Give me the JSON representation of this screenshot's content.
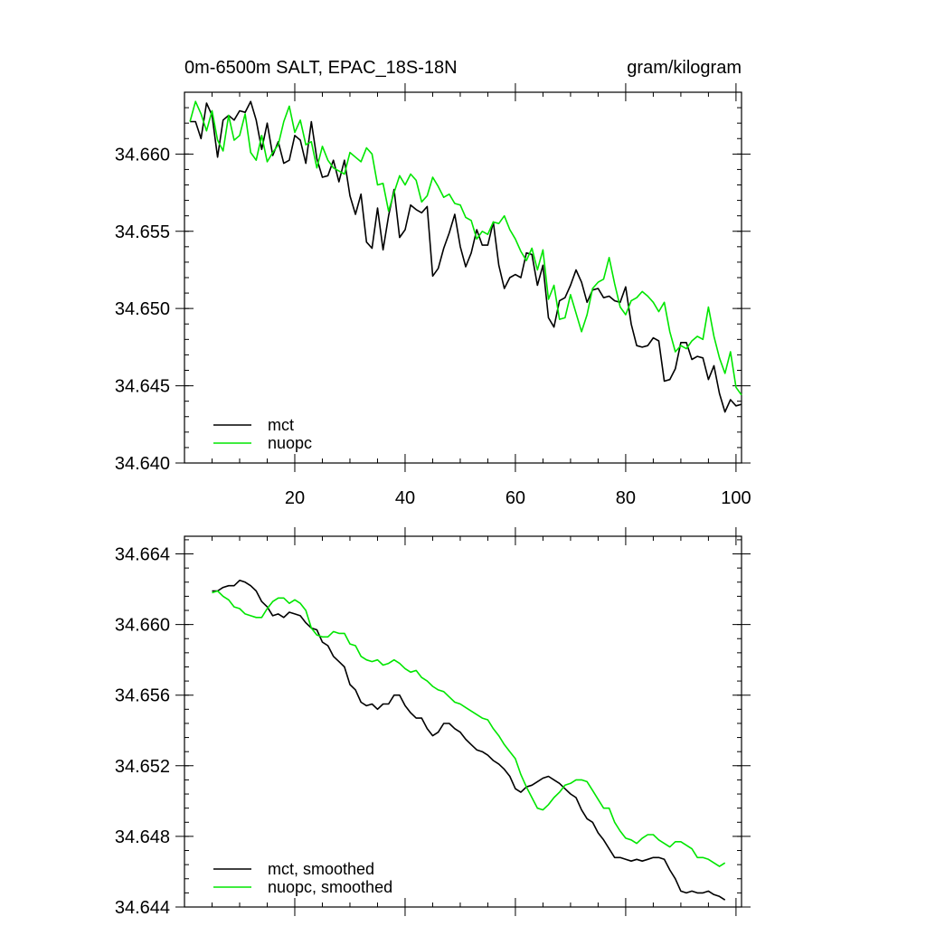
{
  "chart_data": [
    {
      "type": "line",
      "title": "0m-6500m SALT, EPAC_18S-18N",
      "units": "gram/kilogram",
      "xlabel": "",
      "ylabel": "",
      "xlim": [
        0,
        101
      ],
      "ylim": [
        34.64,
        34.664
      ],
      "x_ticks": [
        20,
        40,
        60,
        80,
        100
      ],
      "x_tick_labels": [
        "20",
        "40",
        "60",
        "80",
        "100"
      ],
      "y_ticks": [
        34.64,
        34.645,
        34.65,
        34.655,
        34.66
      ],
      "y_tick_labels": [
        "34.640",
        "34.645",
        "34.650",
        "34.655",
        "34.660"
      ],
      "grid": false,
      "legend_position": "bottom-left",
      "x": [
        1,
        2,
        3,
        4,
        5,
        6,
        7,
        8,
        9,
        10,
        11,
        12,
        13,
        14,
        15,
        16,
        17,
        18,
        19,
        20,
        21,
        22,
        23,
        24,
        25,
        26,
        27,
        28,
        29,
        30,
        31,
        32,
        33,
        34,
        35,
        36,
        37,
        38,
        39,
        40,
        41,
        42,
        43,
        44,
        45,
        46,
        47,
        48,
        49,
        50,
        51,
        52,
        53,
        54,
        55,
        56,
        57,
        58,
        59,
        60,
        61,
        62,
        63,
        64,
        65,
        66,
        67,
        68,
        69,
        70,
        71,
        72,
        73,
        74,
        75,
        76,
        77,
        78,
        79,
        80,
        81,
        82,
        83,
        84,
        85,
        86,
        87,
        88,
        89,
        90,
        91,
        92,
        93,
        94,
        95,
        96,
        97,
        98,
        99,
        100,
        101
      ],
      "series": [
        {
          "name": "mct",
          "color": "#000000",
          "values": [
            34.6621,
            34.6621,
            34.661,
            34.6633,
            34.6625,
            34.6598,
            34.6622,
            34.6625,
            34.6622,
            34.6628,
            34.6627,
            34.6634,
            34.6622,
            34.6603,
            34.662,
            34.6599,
            34.6608,
            34.6594,
            34.6596,
            34.6612,
            34.6609,
            34.6594,
            34.6621,
            34.6597,
            34.6585,
            34.6586,
            34.6596,
            34.6582,
            34.6596,
            34.6573,
            34.6561,
            34.6574,
            34.6543,
            34.6539,
            34.6565,
            34.6538,
            34.656,
            34.6577,
            34.6546,
            34.6551,
            34.6567,
            34.6564,
            34.6562,
            34.6566,
            34.6521,
            34.6526,
            34.6539,
            34.6549,
            34.6561,
            34.654,
            34.6527,
            34.6536,
            34.6551,
            34.6541,
            34.6541,
            34.6556,
            34.6528,
            34.6513,
            34.652,
            34.6522,
            34.652,
            34.6536,
            34.6535,
            34.6515,
            34.6528,
            34.6494,
            34.6488,
            34.6505,
            34.6507,
            34.6515,
            34.6525,
            34.6517,
            34.6504,
            34.6512,
            34.6513,
            34.6507,
            34.6508,
            34.6505,
            34.6504,
            34.6514,
            34.649,
            34.6476,
            34.6475,
            34.6476,
            34.6481,
            34.6479,
            34.6453,
            34.6454,
            34.6461,
            34.6478,
            34.6478,
            34.6467,
            34.6469,
            34.6468,
            34.6454,
            34.6463,
            34.6445,
            34.6433,
            34.6441,
            34.6437,
            34.6438
          ]
        },
        {
          "name": "nuopc",
          "color": "#00e600",
          "values": [
            34.6621,
            34.6634,
            34.6626,
            34.6615,
            34.6628,
            34.6609,
            34.6602,
            34.6625,
            34.6609,
            34.6612,
            34.6626,
            34.6601,
            34.6596,
            34.6612,
            34.6595,
            34.6601,
            34.6606,
            34.6621,
            34.6631,
            34.6614,
            34.6622,
            34.6606,
            34.6608,
            34.6591,
            34.6605,
            34.6596,
            34.6591,
            34.6589,
            34.6587,
            34.6601,
            34.6598,
            34.6595,
            34.6604,
            34.66,
            34.658,
            34.6581,
            34.6563,
            34.6575,
            34.6586,
            34.658,
            34.6587,
            34.6583,
            34.6569,
            34.6573,
            34.6585,
            34.6579,
            34.6572,
            34.6574,
            34.6568,
            34.6567,
            34.6559,
            34.6557,
            34.6545,
            34.655,
            34.6548,
            34.6556,
            34.6555,
            34.656,
            34.6551,
            34.6545,
            34.6537,
            34.6531,
            34.6539,
            34.6525,
            34.6538,
            34.6506,
            34.6515,
            34.6493,
            34.6494,
            34.6509,
            34.6497,
            34.6485,
            34.6496,
            34.6513,
            34.6517,
            34.6519,
            34.6533,
            34.6516,
            34.6501,
            34.6496,
            34.6505,
            34.6507,
            34.6511,
            34.6508,
            34.6504,
            34.6498,
            34.6504,
            34.6485,
            34.6472,
            34.6476,
            34.6474,
            34.6479,
            34.6482,
            34.648,
            34.6501,
            34.6482,
            34.6468,
            34.6458,
            34.6472,
            34.6449,
            34.6444
          ]
        }
      ]
    },
    {
      "type": "line",
      "title": "",
      "xlabel": "",
      "ylabel": "",
      "xlim": [
        0,
        101
      ],
      "ylim": [
        34.644,
        34.665
      ],
      "x_ticks": [
        20,
        40,
        60,
        80,
        100
      ],
      "y_ticks": [
        34.644,
        34.648,
        34.652,
        34.656,
        34.66,
        34.664
      ],
      "y_tick_labels": [
        "34.644",
        "34.648",
        "34.652",
        "34.656",
        "34.660",
        "34.664"
      ],
      "grid": false,
      "legend_position": "bottom-left",
      "x": [
        5,
        6,
        7,
        8,
        9,
        10,
        11,
        12,
        13,
        14,
        15,
        16,
        17,
        18,
        19,
        20,
        21,
        22,
        23,
        24,
        25,
        26,
        27,
        28,
        29,
        30,
        31,
        32,
        33,
        34,
        35,
        36,
        37,
        38,
        39,
        40,
        41,
        42,
        43,
        44,
        45,
        46,
        47,
        48,
        49,
        50,
        51,
        52,
        53,
        54,
        55,
        56,
        57,
        58,
        59,
        60,
        61,
        62,
        63,
        64,
        65,
        66,
        67,
        68,
        69,
        70,
        71,
        72,
        73,
        74,
        75,
        76,
        77,
        78,
        79,
        80,
        81,
        82,
        83,
        84,
        85,
        86,
        87,
        88,
        89,
        90,
        91,
        92,
        93,
        94,
        95,
        96,
        97,
        98
      ],
      "series": [
        {
          "name": "mct, smoothed",
          "color": "#000000",
          "values": [
            34.6619,
            34.6619,
            34.6621,
            34.6622,
            34.6622,
            34.6625,
            34.6624,
            34.6622,
            34.6619,
            34.6613,
            34.661,
            34.6605,
            34.6606,
            34.6604,
            34.6607,
            34.6606,
            34.6605,
            34.6601,
            34.6598,
            34.6597,
            34.659,
            34.6588,
            34.6582,
            34.6579,
            34.6576,
            34.6566,
            34.6563,
            34.6556,
            34.6554,
            34.6555,
            34.6552,
            34.6555,
            34.6555,
            34.656,
            34.656,
            34.6554,
            34.655,
            34.6547,
            34.6547,
            34.6541,
            34.6537,
            34.6539,
            34.6544,
            34.6544,
            34.6541,
            34.6539,
            34.6535,
            34.6532,
            34.6529,
            34.6528,
            34.6526,
            34.6523,
            34.6521,
            34.6518,
            34.6514,
            34.6507,
            34.6505,
            34.6508,
            34.6509,
            34.6511,
            34.6513,
            34.6514,
            34.6512,
            34.651,
            34.6507,
            34.6504,
            34.6502,
            34.6495,
            34.649,
            34.6488,
            34.6482,
            34.6478,
            34.6473,
            34.6468,
            34.6468,
            34.6467,
            34.6466,
            34.6467,
            34.6466,
            34.6467,
            34.6468,
            34.6468,
            34.6467,
            34.6461,
            34.6456,
            34.6449,
            34.6448,
            34.6449,
            34.6448,
            34.6448,
            34.6449,
            34.6447,
            34.6446,
            34.6444
          ]
        },
        {
          "name": "nuopc, smoothed",
          "color": "#00e600",
          "values": [
            34.6618,
            34.6619,
            34.6616,
            34.6614,
            34.661,
            34.6609,
            34.6606,
            34.6605,
            34.6604,
            34.6604,
            34.6609,
            34.6613,
            34.6615,
            34.6615,
            34.6612,
            34.6614,
            34.6612,
            34.6608,
            34.6598,
            34.6594,
            34.6593,
            34.6593,
            34.6596,
            34.6595,
            34.6595,
            34.6589,
            34.6588,
            34.6582,
            34.658,
            34.6579,
            34.658,
            34.6577,
            34.6578,
            34.658,
            34.6578,
            34.6575,
            34.6573,
            34.6574,
            34.657,
            34.6568,
            34.6565,
            34.6563,
            34.6562,
            34.6559,
            34.6556,
            34.6555,
            34.6553,
            34.6551,
            34.6549,
            34.6547,
            34.6546,
            34.6541,
            34.6537,
            34.6532,
            34.6528,
            34.6524,
            34.6515,
            34.6508,
            34.6502,
            34.6496,
            34.6495,
            34.6498,
            34.6502,
            34.6505,
            34.6509,
            34.651,
            34.6512,
            34.6512,
            34.6511,
            34.6506,
            34.6501,
            34.6496,
            34.6496,
            34.6488,
            34.6483,
            34.6479,
            34.6478,
            34.6476,
            34.6479,
            34.6481,
            34.6481,
            34.6478,
            34.6476,
            34.6474,
            34.6477,
            34.6477,
            34.6475,
            34.6473,
            34.6468,
            34.6468,
            34.6467,
            34.6465,
            34.6463,
            34.6465
          ]
        }
      ]
    }
  ]
}
